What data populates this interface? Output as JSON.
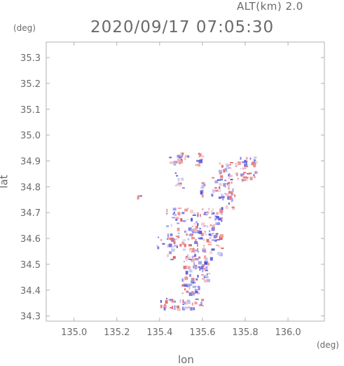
{
  "header": {
    "alt_label": "ALT(km) 2.0",
    "datetime": "2020/09/17 07:05:30"
  },
  "axes": {
    "x_unit": "(deg)",
    "y_unit": "(deg)",
    "xlabel": "lon",
    "ylabel": "lat"
  },
  "chart_data": {
    "type": "heatmap",
    "xlabel": "lon",
    "ylabel": "lat",
    "xlim": [
      134.87,
      136.17
    ],
    "ylim": [
      34.28,
      35.36
    ],
    "x_ticks": [
      {
        "value": 135.0,
        "label": "135.0"
      },
      {
        "value": 135.2,
        "label": "135.2"
      },
      {
        "value": 135.4,
        "label": "135.4"
      },
      {
        "value": 135.6,
        "label": "135.6"
      },
      {
        "value": 135.8,
        "label": "135.8"
      },
      {
        "value": 136.0,
        "label": "136.0"
      }
    ],
    "y_ticks": [
      {
        "value": 34.3,
        "label": "34.3"
      },
      {
        "value": 34.4,
        "label": "34.4"
      },
      {
        "value": 34.5,
        "label": "34.5"
      },
      {
        "value": 34.6,
        "label": "34.6"
      },
      {
        "value": 34.7,
        "label": "34.7"
      },
      {
        "value": 34.8,
        "label": "34.8"
      },
      {
        "value": 34.9,
        "label": "34.9"
      },
      {
        "value": 35.0,
        "label": "35.0"
      },
      {
        "value": 35.1,
        "label": "35.1"
      },
      {
        "value": 35.2,
        "label": "35.2"
      },
      {
        "value": 35.3,
        "label": "35.3"
      }
    ],
    "colors": {
      "positive": "#e06060",
      "negative": "#5050e0",
      "frame": "#b0b0b0"
    },
    "clusters": [
      {
        "lon": [
          135.44,
          135.53
        ],
        "lat": [
          34.895,
          34.935
        ],
        "count": 25
      },
      {
        "lon": [
          135.56,
          135.6
        ],
        "lat": [
          34.88,
          34.935
        ],
        "count": 12
      },
      {
        "lon": [
          135.67,
          135.73
        ],
        "lat": [
          34.84,
          34.9
        ],
        "count": 22
      },
      {
        "lon": [
          135.75,
          135.85
        ],
        "lat": [
          34.82,
          34.92
        ],
        "count": 45
      },
      {
        "lon": [
          135.64,
          135.75
        ],
        "lat": [
          34.76,
          34.84
        ],
        "count": 35
      },
      {
        "lon": [
          135.68,
          135.74
        ],
        "lat": [
          34.72,
          34.78
        ],
        "count": 14
      },
      {
        "lon": [
          135.47,
          135.51
        ],
        "lat": [
          34.79,
          34.86
        ],
        "count": 10
      },
      {
        "lon": [
          135.58,
          135.61
        ],
        "lat": [
          34.76,
          34.82
        ],
        "count": 8
      },
      {
        "lon": [
          135.29,
          135.31
        ],
        "lat": [
          34.755,
          34.77
        ],
        "count": 3
      },
      {
        "lon": [
          135.43,
          135.69
        ],
        "lat": [
          34.52,
          34.72
        ],
        "count": 170
      },
      {
        "lon": [
          135.51,
          135.63
        ],
        "lat": [
          34.44,
          34.53
        ],
        "count": 60
      },
      {
        "lon": [
          135.5,
          135.58
        ],
        "lat": [
          34.39,
          34.45
        ],
        "count": 30
      },
      {
        "lon": [
          135.38,
          135.47
        ],
        "lat": [
          34.56,
          34.62
        ],
        "count": 12
      },
      {
        "lon": [
          135.4,
          135.6
        ],
        "lat": [
          34.33,
          34.37
        ],
        "count": 40
      }
    ]
  }
}
